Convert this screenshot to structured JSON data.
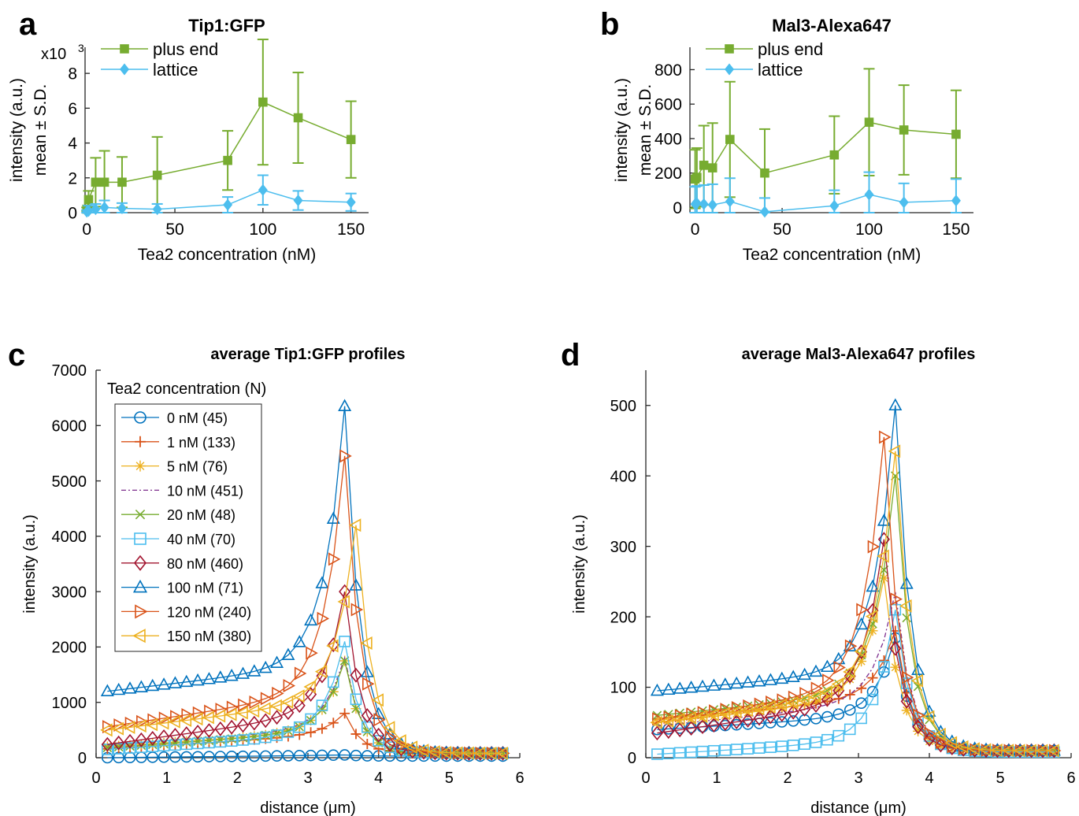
{
  "colors": {
    "green": "#77ac30",
    "cyan": "#4dbeee",
    "blue": "#0072bd",
    "orange": "#d95319",
    "yellow": "#edb120",
    "purple": "#7e2f8e",
    "darkred": "#a2142f"
  },
  "panels": {
    "a": {
      "letter": "a"
    },
    "b": {
      "letter": "b"
    },
    "c": {
      "letter": "c"
    },
    "d": {
      "letter": "d"
    }
  },
  "chart_data": [
    {
      "id": "a",
      "type": "line",
      "title": "Tip1:GFP",
      "xlabel": "Tea2 concentration (nM)",
      "ylabel": [
        "intensity (a.u.)",
        "mean ± S.D."
      ],
      "y_exponent": "x10",
      "y_exponent_power": "3",
      "xlim": [
        -1,
        160
      ],
      "ylim": [
        0,
        9.5
      ],
      "xticks": [
        0,
        50,
        100,
        150
      ],
      "xtick_labels": [
        "0",
        "50",
        "100",
        "150"
      ],
      "yticks": [
        0,
        2,
        4,
        6,
        8
      ],
      "ytick_labels": [
        "0",
        "2",
        "4",
        "6",
        "8"
      ],
      "legend": "top-left",
      "series": [
        {
          "name": "plus end",
          "color": "green",
          "marker": "square",
          "x": [
            0,
            1,
            5,
            10,
            20,
            40,
            80,
            100,
            120,
            150
          ],
          "y": [
            0.2,
            0.75,
            1.75,
            1.75,
            1.75,
            2.15,
            3.0,
            6.35,
            5.45,
            4.2
          ],
          "err": [
            0.1,
            0.5,
            1.4,
            1.8,
            1.45,
            2.2,
            1.7,
            3.6,
            2.6,
            2.2
          ]
        },
        {
          "name": "lattice",
          "color": "cyan",
          "marker": "diamond",
          "x": [
            0,
            1,
            5,
            10,
            20,
            40,
            80,
            100,
            120,
            150
          ],
          "y": [
            0.05,
            0.1,
            0.2,
            0.3,
            0.25,
            0.2,
            0.45,
            1.3,
            0.7,
            0.6
          ],
          "err": [
            0.1,
            0.3,
            0.3,
            0.4,
            0.3,
            0.3,
            0.45,
            0.85,
            0.55,
            0.5
          ]
        }
      ]
    },
    {
      "id": "b",
      "type": "line",
      "title": "Mal3-Alexa647",
      "xlabel": "Tea2 concentration (nM)",
      "ylabel": [
        "intensity (a.u.)",
        "mean ± S.D."
      ],
      "xlim": [
        -3,
        160
      ],
      "ylim": [
        -30,
        930
      ],
      "xticks": [
        0,
        50,
        100,
        150
      ],
      "xtick_labels": [
        "0",
        "50",
        "100",
        "150"
      ],
      "yticks": [
        0,
        200,
        400,
        600,
        800
      ],
      "ytick_labels": [
        "0",
        "200",
        "400",
        "600",
        "800"
      ],
      "legend": "top-left",
      "series": [
        {
          "name": "plus end",
          "color": "green",
          "marker": "square",
          "x": [
            0,
            1,
            5,
            10,
            20,
            40,
            80,
            100,
            120,
            150
          ],
          "y": [
            165,
            175,
            245,
            230,
            395,
            200,
            305,
            495,
            450,
            425
          ],
          "err": [
            170,
            170,
            230,
            260,
            335,
            255,
            225,
            310,
            260,
            255
          ]
        },
        {
          "name": "lattice",
          "color": "cyan",
          "marker": "diamond",
          "x": [
            0,
            1,
            5,
            10,
            20,
            40,
            80,
            100,
            120,
            150
          ],
          "y": [
            20,
            25,
            20,
            15,
            35,
            -25,
            10,
            75,
            30,
            40
          ],
          "err": [
            100,
            100,
            110,
            120,
            135,
            80,
            90,
            130,
            110,
            125
          ]
        }
      ]
    },
    {
      "id": "c",
      "type": "line",
      "title": "average Tip1:GFP profiles",
      "xlabel": "distance (μm)",
      "ylabel": "intensity (a.u.)",
      "xlim": [
        0,
        6
      ],
      "ylim": [
        0,
        7000
      ],
      "xticks": [
        0,
        1,
        2,
        3,
        4,
        5,
        6
      ],
      "xtick_labels": [
        "0",
        "1",
        "2",
        "3",
        "4",
        "5",
        "6"
      ],
      "yticks": [
        0,
        1000,
        2000,
        3000,
        4000,
        5000,
        6000,
        7000
      ],
      "ytick_labels": [
        "0",
        "1000",
        "2000",
        "3000",
        "4000",
        "5000",
        "6000",
        "7000"
      ],
      "legend": "top-left",
      "legend_title": "Tea2 concentration (N)",
      "x": [
        0.16,
        0.32,
        0.48,
        0.64,
        0.8,
        0.96,
        1.12,
        1.28,
        1.44,
        1.6,
        1.76,
        1.92,
        2.08,
        2.24,
        2.4,
        2.56,
        2.72,
        2.88,
        3.04,
        3.2,
        3.36,
        3.52,
        3.68,
        3.84,
        4.0,
        4.16,
        4.32,
        4.48,
        4.64,
        4.8,
        4.96,
        5.12,
        5.28,
        5.44,
        5.6,
        5.76
      ],
      "series": [
        {
          "name": "0 nM (45)",
          "color": "blue",
          "marker": "circle",
          "base": 0,
          "shoulder": 45,
          "peak": 50,
          "peak_x": 3.52,
          "tail": 30
        },
        {
          "name": "1 nM (133)",
          "color": "orange",
          "marker": "plus",
          "base": 160,
          "shoulder": 420,
          "peak": 800,
          "peak_x": 3.52,
          "tail": 80
        },
        {
          "name": "5 nM (76)",
          "color": "yellow",
          "marker": "asterisk",
          "base": 200,
          "shoulder": 480,
          "peak": 1750,
          "peak_x": 3.52,
          "tail": 80
        },
        {
          "name": "10 nM (451)",
          "color": "purple",
          "marker": "none",
          "dash": "6,3,2,3",
          "base": 230,
          "shoulder": 520,
          "peak": 1800,
          "peak_x": 3.52,
          "tail": 80
        },
        {
          "name": "20 nM (48)",
          "color": "green",
          "marker": "x",
          "base": 180,
          "shoulder": 480,
          "peak": 1750,
          "peak_x": 3.52,
          "tail": 80
        },
        {
          "name": "40 nM (70)",
          "color": "cyan",
          "marker": "square",
          "base": 150,
          "shoulder": 430,
          "peak": 2100,
          "peak_x": 3.52,
          "tail": 80
        },
        {
          "name": "80 nM (460)",
          "color": "darkred",
          "marker": "diamond",
          "base": 240,
          "shoulder": 820,
          "peak": 3000,
          "peak_x": 3.52,
          "tail": 80
        },
        {
          "name": "100 nM (71)",
          "color": "blue",
          "marker": "tri-up",
          "base": 1200,
          "shoulder": 1700,
          "peak": 6350,
          "peak_x": 3.52,
          "tail": 80
        },
        {
          "name": "120 nM (240)",
          "color": "orange",
          "marker": "tri-right",
          "base": 560,
          "shoulder": 1200,
          "peak": 5450,
          "peak_x": 3.52,
          "tail": 80
        },
        {
          "name": "150 nM (380)",
          "color": "yellow",
          "marker": "tri-left",
          "base": 500,
          "shoulder": 1050,
          "peak": 4200,
          "peak_x": 3.68,
          "tail": 80
        }
      ]
    },
    {
      "id": "d",
      "type": "line",
      "title": "average Mal3-Alexa647 profiles",
      "xlabel": "distance (μm)",
      "ylabel": "intensity (a.u.)",
      "xlim": [
        0,
        6
      ],
      "ylim": [
        0,
        550
      ],
      "xticks": [
        0,
        1,
        2,
        3,
        4,
        5,
        6
      ],
      "xtick_labels": [
        "0",
        "1",
        "2",
        "3",
        "4",
        "5",
        "6"
      ],
      "yticks": [
        0,
        100,
        200,
        300,
        400,
        500
      ],
      "ytick_labels": [
        "0",
        "100",
        "200",
        "300",
        "400",
        "500"
      ],
      "x": [
        0.16,
        0.32,
        0.48,
        0.64,
        0.8,
        0.96,
        1.12,
        1.28,
        1.44,
        1.6,
        1.76,
        1.92,
        2.08,
        2.24,
        2.4,
        2.56,
        2.72,
        2.88,
        3.04,
        3.2,
        3.36,
        3.52,
        3.68,
        3.84,
        4.0,
        4.16,
        4.32,
        4.48,
        4.64,
        4.8,
        4.96,
        5.12,
        5.28,
        5.44,
        5.6,
        5.76
      ],
      "series": [
        {
          "name": "0 nM (45)",
          "color": "blue",
          "marker": "circle",
          "base": 40,
          "shoulder": 60,
          "peak": 170,
          "peak_x": 3.52,
          "tail": 10
        },
        {
          "name": "1 nM (133)",
          "color": "orange",
          "marker": "plus",
          "base": 55,
          "shoulder": 85,
          "peak": 180,
          "peak_x": 3.52,
          "tail": 10
        },
        {
          "name": "5 nM (76)",
          "color": "yellow",
          "marker": "asterisk",
          "base": 50,
          "shoulder": 85,
          "peak": 255,
          "peak_x": 3.36,
          "tail": 10
        },
        {
          "name": "10 nM (451)",
          "color": "purple",
          "marker": "none",
          "dash": "6,3,2,3",
          "base": 45,
          "shoulder": 80,
          "peak": 235,
          "peak_x": 3.52,
          "tail": 10
        },
        {
          "name": "20 nM (48)",
          "color": "green",
          "marker": "x",
          "base": 60,
          "shoulder": 95,
          "peak": 400,
          "peak_x": 3.52,
          "tail": 10
        },
        {
          "name": "40 nM (70)",
          "color": "cyan",
          "marker": "square",
          "base": 5,
          "shoulder": 25,
          "peak": 210,
          "peak_x": 3.52,
          "tail": 8
        },
        {
          "name": "80 nM (460)",
          "color": "darkred",
          "marker": "diamond",
          "base": 35,
          "shoulder": 80,
          "peak": 310,
          "peak_x": 3.36,
          "tail": 10
        },
        {
          "name": "100 nM (71)",
          "color": "blue",
          "marker": "tri-up",
          "base": 95,
          "shoulder": 125,
          "peak": 500,
          "peak_x": 3.52,
          "tail": 10
        },
        {
          "name": "120 nM (240)",
          "color": "orange",
          "marker": "tri-right",
          "base": 55,
          "shoulder": 100,
          "peak": 455,
          "peak_x": 3.36,
          "tail": 10
        },
        {
          "name": "150 nM (380)",
          "color": "yellow",
          "marker": "tri-left",
          "base": 50,
          "shoulder": 95,
          "peak": 435,
          "peak_x": 3.52,
          "tail": 10
        }
      ]
    }
  ]
}
